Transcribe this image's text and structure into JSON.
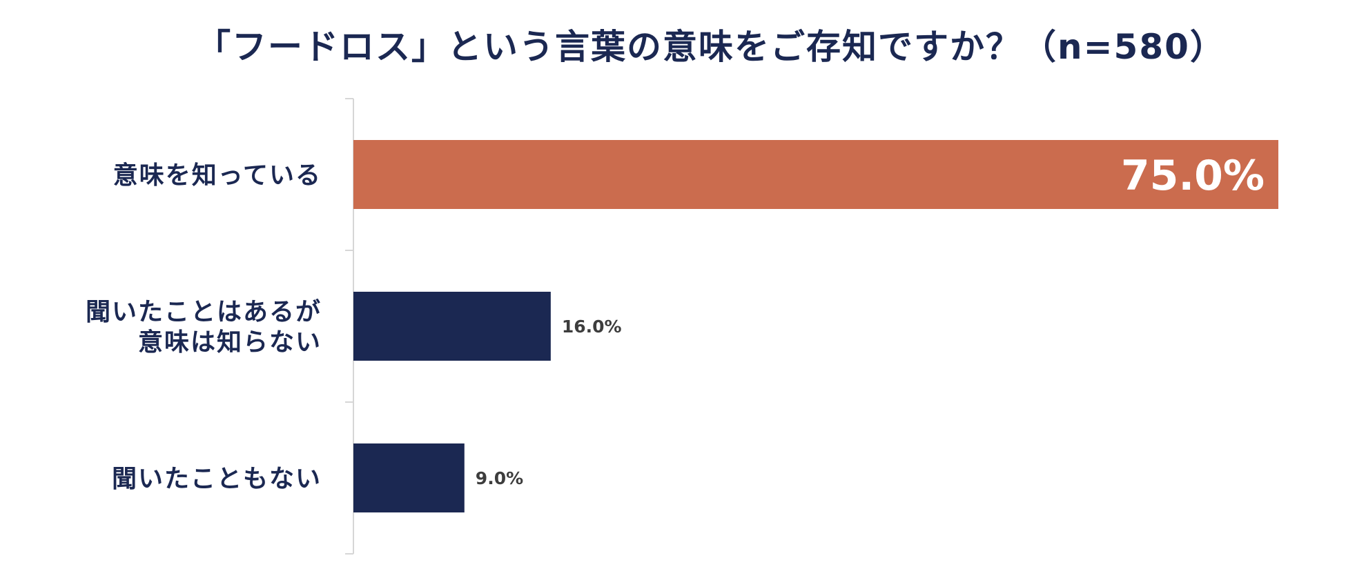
{
  "chart_data": {
    "type": "bar",
    "orientation": "horizontal",
    "title": "「フードロス」という言葉の意味をご存知ですか？（n=580）",
    "categories": [
      [
        "意味を知っている"
      ],
      [
        "聞いたことはあるが",
        "意味は知らない"
      ],
      [
        "聞いたこともない"
      ]
    ],
    "values": [
      75.0,
      16.0,
      9.0
    ],
    "value_labels": [
      "75.0%",
      "16.0%",
      "9.0%"
    ],
    "highlight_index": 0,
    "xlim": [
      0,
      75.0
    ],
    "grid": false,
    "legend": "none"
  },
  "colors": {
    "highlight": "#cb6c4e",
    "bar": "#1b2852",
    "axis": "#d6d6d6"
  }
}
